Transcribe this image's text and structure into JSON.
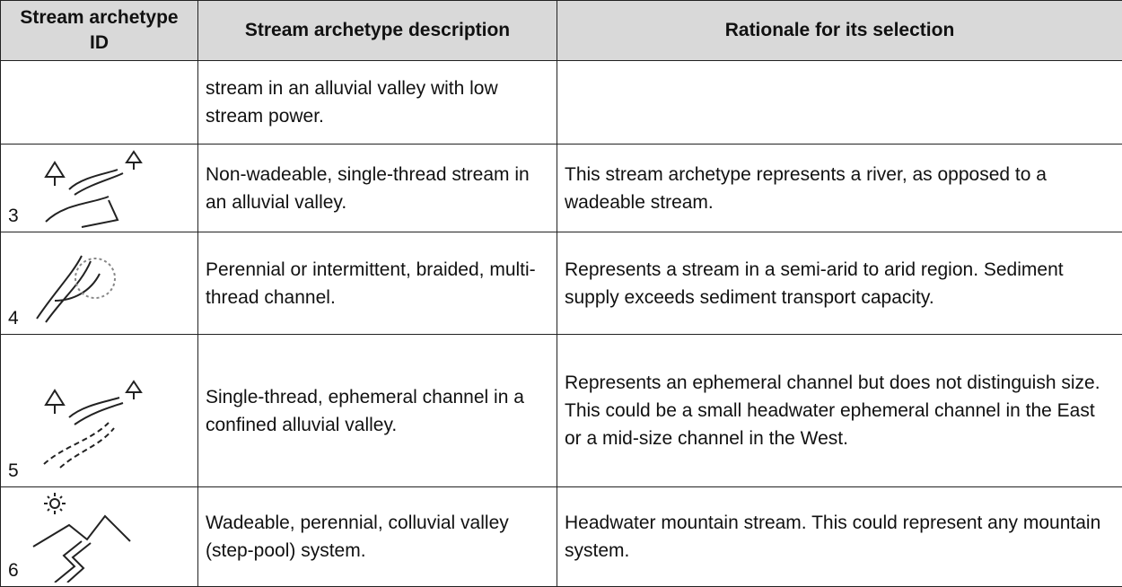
{
  "table": {
    "header": [
      "Stream archetype ID",
      "Stream archetype description",
      "Rationale for its selection"
    ],
    "rows": [
      {
        "description": "stream in an alluvial valley with low stream power."
      },
      {
        "id": "3",
        "description": "Non-wadeable, single-thread stream in an alluvial valley.",
        "rationale": "This stream archetype represents a river, as opposed to a wadeable stream."
      },
      {
        "id": "4",
        "description": "Perennial or intermittent, braided, multi-thread channel.",
        "rationale": "Represents a stream in a semi-arid to arid region. Sediment supply exceeds sediment transport capacity."
      },
      {
        "id": "5",
        "description": "Single-thread, ephemeral channel in a confined alluvial valley.",
        "rationale": "Represents an ephemeral channel but does not distinguish size. This could be a small headwater ephemeral channel in the East or a mid-size channel in the West."
      },
      {
        "id": "6",
        "description": "Wadeable, perennial, colluvial valley (step-pool) system.",
        "rationale": "Headwater mountain stream. This could represent any mountain system."
      }
    ]
  }
}
